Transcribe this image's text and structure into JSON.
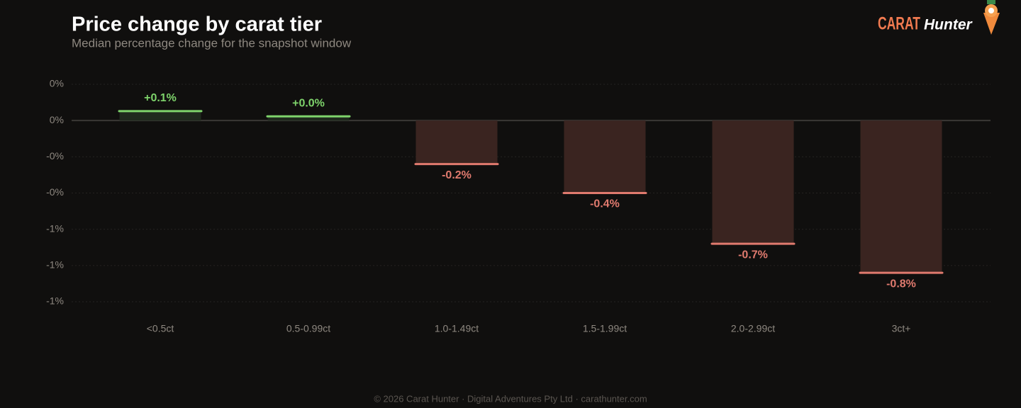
{
  "chart_data": {
    "type": "bar",
    "title": "Price change by carat tier",
    "subtitle": "Median percentage change for the snapshot window",
    "categories": [
      "<0.5ct",
      "0.5-0.99ct",
      "1.0-1.49ct",
      "1.5-1.99ct",
      "2.0-2.99ct",
      "3ct+"
    ],
    "values": [
      0.052,
      0.023,
      -0.24,
      -0.4,
      -0.68,
      -0.84
    ],
    "value_labels": [
      "+0.1%",
      "+0.0%",
      "-0.2%",
      "-0.4%",
      "-0.7%",
      "-0.8%"
    ],
    "colors": {
      "positive": "#7ed36b",
      "negative": "#e07a6e"
    },
    "ylim": [
      -1.0,
      0.2
    ],
    "yticks": [
      {
        "value": 0.2,
        "label": "0%"
      },
      {
        "value": 0,
        "label": "0%"
      },
      {
        "value": -0.2,
        "label": "-0%"
      },
      {
        "value": -0.4,
        "label": "-0%"
      },
      {
        "value": -0.6,
        "label": "-1%"
      },
      {
        "value": -0.8,
        "label": "-1%"
      },
      {
        "value": -1.0,
        "label": "-1%"
      }
    ],
    "grid": true
  },
  "logo": {
    "brand": "CARAT",
    "name": "Hunter"
  },
  "footer": "© 2026 Carat Hunter · Digital Adventures Pty Ltd · carathunter.com"
}
